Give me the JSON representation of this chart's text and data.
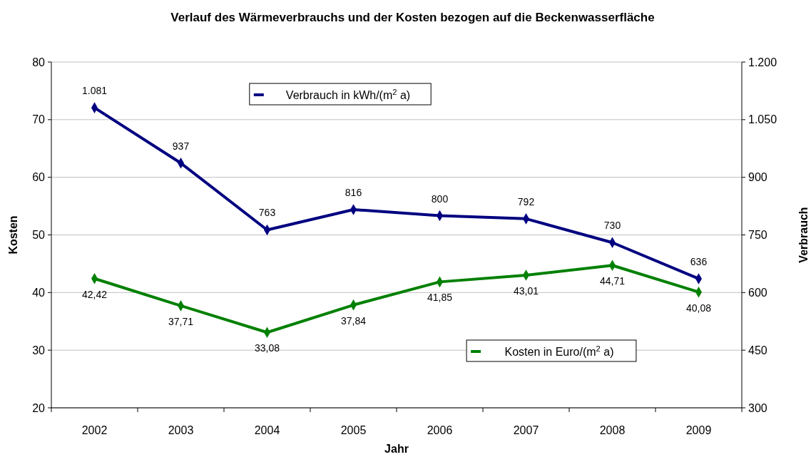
{
  "chart_data": {
    "type": "line",
    "title": "Verlauf des Wärmeverbrauchs und der Kosten bezogen auf die Beckenwasserfläche",
    "xlabel": "Jahr",
    "ylabel": "Kosten",
    "y2label": "Verbrauch",
    "categories": [
      "2002",
      "2003",
      "2004",
      "2005",
      "2006",
      "2007",
      "2008",
      "2009"
    ],
    "series": [
      {
        "name": "Verbrauch in kWh/(m$^{2}$ a)",
        "color": "#000080",
        "axis": "y2",
        "values": [
          1081,
          937,
          763,
          816,
          800,
          792,
          730,
          636
        ],
        "value_labels": [
          "1.081",
          "937",
          "763",
          "816",
          "800",
          "792",
          "730",
          "636"
        ]
      },
      {
        "name": "Kosten in Euro/(m$^{2}$ a)",
        "color": "#008000",
        "values": [
          42.42,
          37.71,
          33.08,
          37.84,
          41.85,
          43.01,
          44.71,
          40.08
        ],
        "value_labels": [
          "42,42",
          "37,71",
          "33,08",
          "37,84",
          "41,85",
          "43,01",
          "44,71",
          "40,08"
        ]
      }
    ],
    "ylim": [
      20,
      80
    ],
    "yticks": [
      20,
      30,
      40,
      50,
      60,
      70,
      80
    ],
    "y2lim": [
      300,
      1200
    ],
    "y2ticks": [
      300,
      450,
      600,
      750,
      900,
      {
        "value": 1050,
        "label": "1.050"
      },
      {
        "value": 1200,
        "label": "1.200"
      }
    ],
    "grid": "y",
    "legend": "top",
    "marker": "diamond",
    "line_style": "solid"
  }
}
